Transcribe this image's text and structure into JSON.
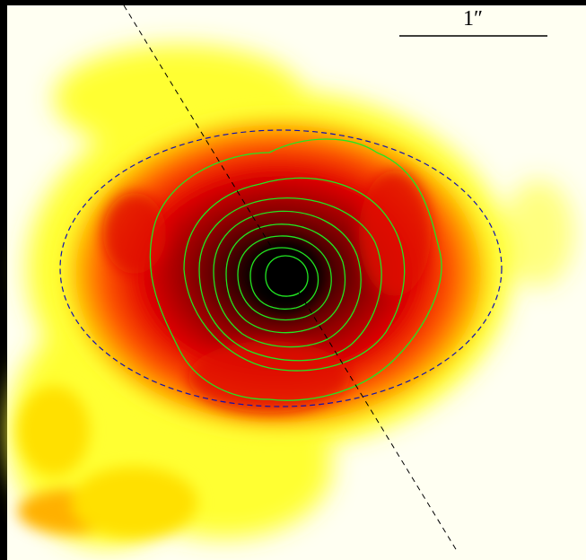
{
  "scale_bar": {
    "label": "1″"
  }
}
